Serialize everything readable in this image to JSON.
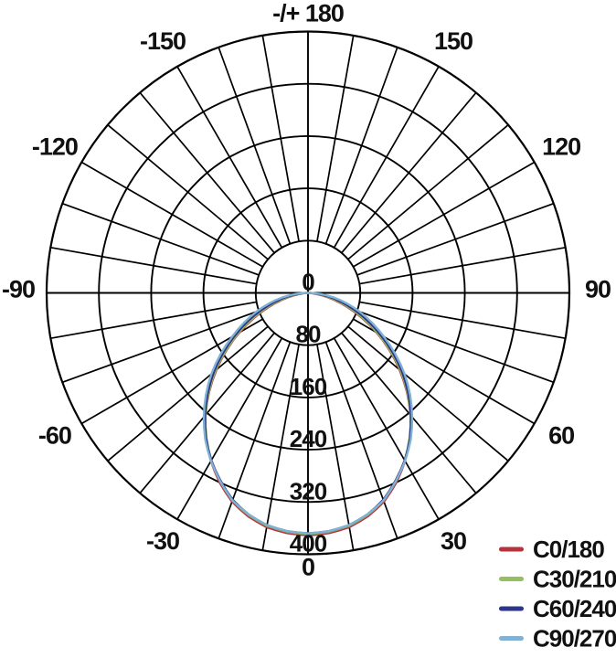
{
  "chart_data": {
    "type": "line",
    "polar": true,
    "description": "Photometric luminous intensity distribution polar diagram",
    "angle_axis": {
      "unit": "deg",
      "zero_position": "bottom",
      "grid_step_deg": 10,
      "label_step_deg": 30,
      "labels": [
        {
          "text": "-/+ 180",
          "deg": 180
        },
        {
          "text": "-150",
          "deg": -150
        },
        {
          "text": "-120",
          "deg": -120
        },
        {
          "text": "-90",
          "deg": -90
        },
        {
          "text": "-60",
          "deg": -60
        },
        {
          "text": "-30",
          "deg": -30
        },
        {
          "text": "0",
          "deg": 0
        },
        {
          "text": "30",
          "deg": 30
        },
        {
          "text": "60",
          "deg": 60
        },
        {
          "text": "90",
          "deg": 90
        },
        {
          "text": "120",
          "deg": 120
        },
        {
          "text": "150",
          "deg": 150
        }
      ]
    },
    "r_axis": {
      "min": 0,
      "max": 400,
      "step": 80,
      "tick_labels": [
        "0",
        "80",
        "160",
        "240",
        "320",
        "400"
      ]
    },
    "angles_deg": [
      0,
      5,
      10,
      15,
      20,
      25,
      30,
      35,
      40,
      45,
      50,
      55,
      60,
      65,
      70,
      75,
      80,
      85,
      90
    ],
    "series": [
      {
        "name": "C0/180",
        "color": "#b5333c",
        "symmetric": true,
        "values": [
          371,
          369,
          364,
          354,
          340,
          320,
          297,
          272,
          244,
          214,
          183,
          152,
          121,
          92,
          65,
          42,
          22,
          7,
          0
        ]
      },
      {
        "name": "C30/210",
        "color": "#94c05f",
        "symmetric": true,
        "values": [
          369,
          367,
          362,
          352,
          338,
          318,
          296,
          271,
          244,
          215,
          185,
          154,
          123,
          95,
          69,
          46,
          26,
          9,
          0
        ]
      },
      {
        "name": "C60/240",
        "color": "#2c3587",
        "symmetric": true,
        "values": [
          368,
          366,
          361,
          351,
          337,
          317,
          296,
          272,
          245,
          217,
          188,
          158,
          128,
          101,
          75,
          52,
          31,
          13,
          0
        ]
      },
      {
        "name": "C90/270",
        "color": "#7fb2d3",
        "symmetric": true,
        "values": [
          368,
          366,
          361,
          351,
          338,
          318,
          297,
          274,
          248,
          221,
          193,
          163,
          134,
          108,
          84,
          61,
          39,
          18,
          0
        ]
      }
    ],
    "legend": {
      "position": "bottom-right",
      "items": [
        "C0/180",
        "C30/210",
        "C60/240",
        "C90/270"
      ]
    }
  }
}
